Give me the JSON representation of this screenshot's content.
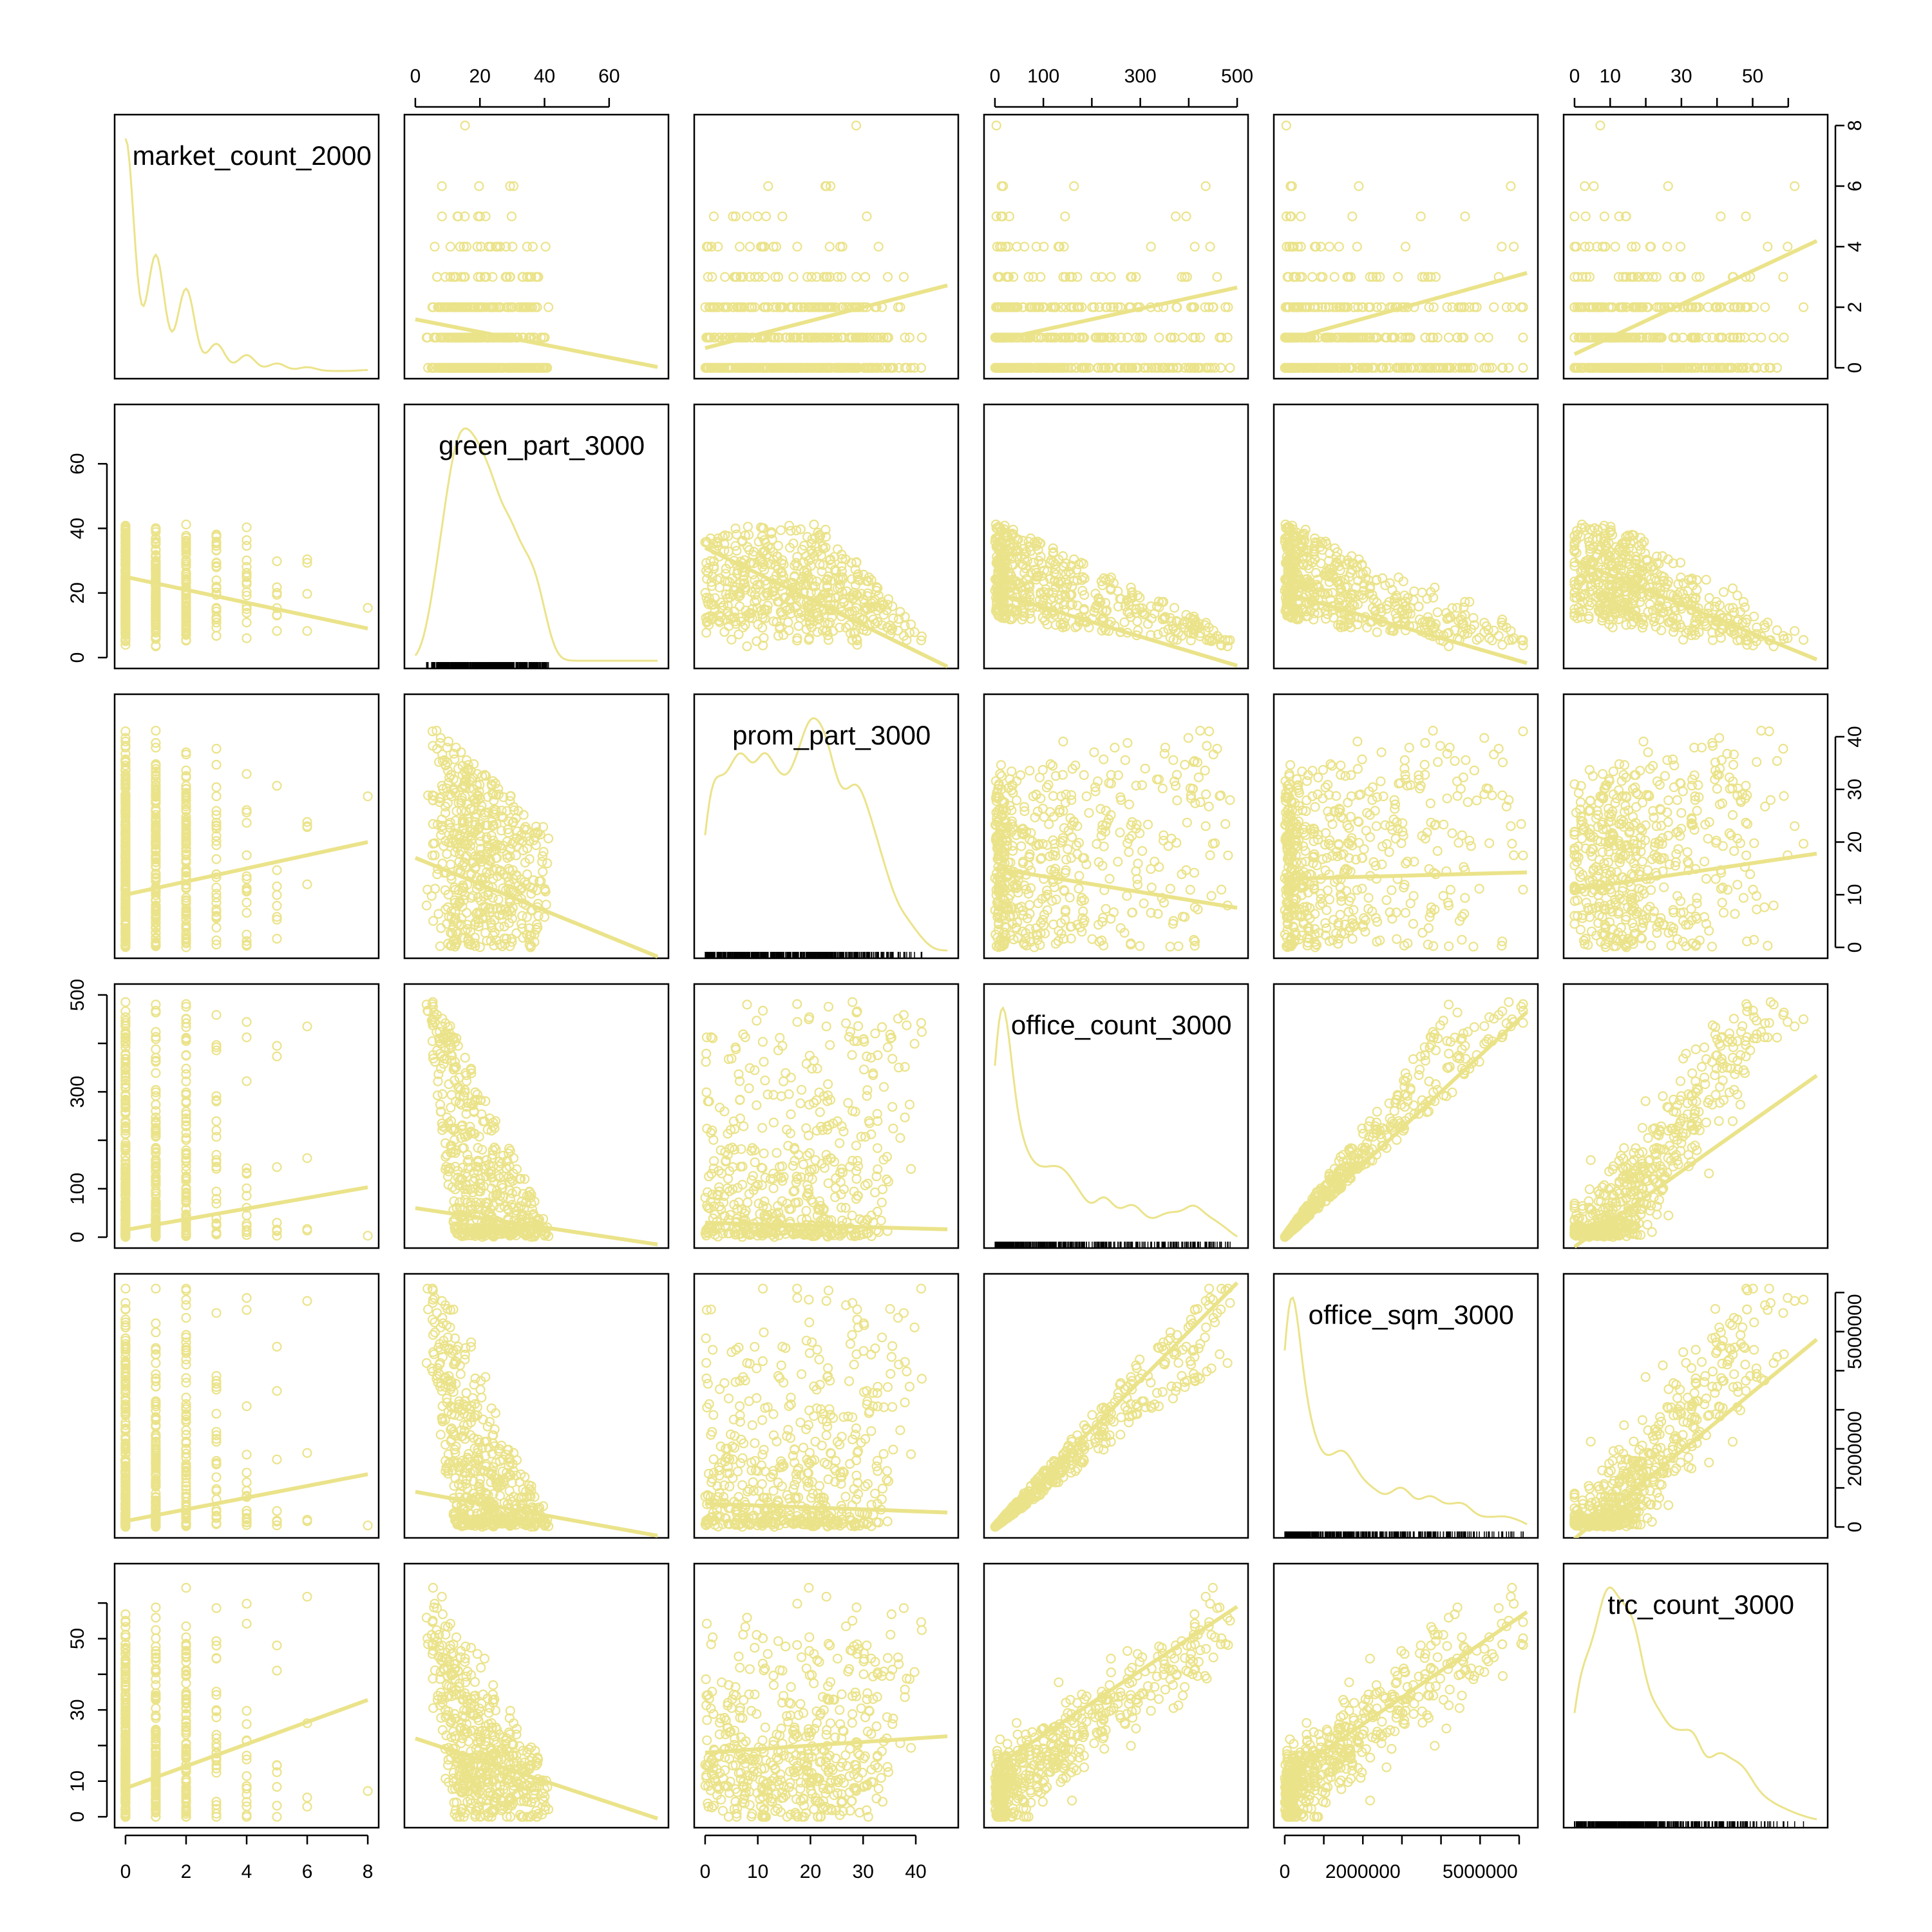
{
  "chart_data": {
    "type": "scatter",
    "subtype": "scatterplot-matrix",
    "title": "",
    "colors": {
      "points": "#ebe38a",
      "axes": "#000000",
      "rug": "#000000",
      "background": "#ffffff"
    },
    "diagonal": "kernel density with rug",
    "off_diagonal": "scatter with linear fit line",
    "grid": false,
    "legend": "none",
    "variables": [
      {
        "name": "market_count_2000",
        "range": [
          0,
          8
        ],
        "ticks": [
          0,
          2,
          4,
          6,
          8
        ],
        "tick_labels": [
          "0",
          "2",
          "4",
          "6",
          "8"
        ]
      },
      {
        "name": "green_part_3000",
        "range": [
          0,
          75
        ],
        "ticks": [
          0,
          20,
          40,
          60
        ],
        "tick_labels": [
          "0",
          "20",
          "40",
          "60"
        ]
      },
      {
        "name": "prom_part_3000",
        "range": [
          0,
          46
        ],
        "ticks": [
          0,
          10,
          20,
          30,
          40
        ],
        "tick_labels": [
          "0",
          "10",
          "20",
          "30",
          "40"
        ]
      },
      {
        "name": "office_count_3000",
        "range": [
          0,
          500
        ],
        "ticks": [
          0,
          100,
          200,
          300,
          400,
          500
        ],
        "tick_labels": [
          "0",
          "100",
          "",
          "300",
          "",
          "500"
        ]
      },
      {
        "name": "office_sqm_3000",
        "range": [
          0,
          6200000
        ],
        "ticks": [
          0,
          1000000,
          2000000,
          3000000,
          4000000,
          5000000,
          6000000
        ],
        "tick_labels": [
          "0",
          "",
          "2000000",
          "",
          "",
          "5000000",
          ""
        ]
      },
      {
        "name": "trc_count_3000",
        "range": [
          0,
          68
        ],
        "ticks": [
          0,
          10,
          20,
          30,
          40,
          50,
          60
        ],
        "tick_labels": [
          "0",
          "10",
          "",
          "30",
          "",
          "50",
          ""
        ]
      }
    ],
    "fit_lines": [
      {
        "x": "market_count_2000",
        "y": "green_part_3000",
        "intercept": 25,
        "slope": -2.0
      },
      {
        "x": "market_count_2000",
        "y": "prom_part_3000",
        "intercept": 10,
        "slope": 1.25
      },
      {
        "x": "market_count_2000",
        "y": "office_count_3000",
        "intercept": 15,
        "slope": 11
      },
      {
        "x": "market_count_2000",
        "y": "office_sqm_3000",
        "intercept": 150000,
        "slope": 150000
      },
      {
        "x": "market_count_2000",
        "y": "trc_count_3000",
        "intercept": 8,
        "slope": 3.1
      },
      {
        "x": "green_part_3000",
        "y": "market_count_2000",
        "intercept": 1.6,
        "slope": -0.021
      },
      {
        "x": "green_part_3000",
        "y": "prom_part_3000",
        "intercept": 17,
        "slope": -0.25
      },
      {
        "x": "green_part_3000",
        "y": "office_count_3000",
        "intercept": 60,
        "slope": -1.0
      },
      {
        "x": "green_part_3000",
        "y": "office_sqm_3000",
        "intercept": 900000,
        "slope": -15000
      },
      {
        "x": "green_part_3000",
        "y": "trc_count_3000",
        "intercept": 22,
        "slope": -0.3
      },
      {
        "x": "prom_part_3000",
        "y": "market_count_2000",
        "intercept": 0.65,
        "slope": 0.045
      },
      {
        "x": "prom_part_3000",
        "y": "green_part_3000",
        "intercept": 34,
        "slope": -0.8
      },
      {
        "x": "prom_part_3000",
        "y": "office_count_3000",
        "intercept": 30,
        "slope": -0.3
      },
      {
        "x": "prom_part_3000",
        "y": "office_sqm_3000",
        "intercept": 600000,
        "slope": -5000
      },
      {
        "x": "prom_part_3000",
        "y": "trc_count_3000",
        "intercept": 18,
        "slope": 0.1
      },
      {
        "x": "office_count_3000",
        "y": "market_count_2000",
        "intercept": 0.9,
        "slope": 0.0035
      },
      {
        "x": "office_count_3000",
        "y": "green_part_3000",
        "intercept": 20,
        "slope": -0.045
      },
      {
        "x": "office_count_3000",
        "y": "prom_part_3000",
        "intercept": 15,
        "slope": -0.015
      },
      {
        "x": "office_count_3000",
        "y": "office_sqm_3000",
        "intercept": 0,
        "slope": 12500
      },
      {
        "x": "office_count_3000",
        "y": "trc_count_3000",
        "intercept": 14,
        "slope": 0.09
      },
      {
        "x": "office_sqm_3000",
        "y": "market_count_2000",
        "intercept": 0.9,
        "slope": 3.6e-07
      },
      {
        "x": "office_sqm_3000",
        "y": "green_part_3000",
        "intercept": 20,
        "slope": -3.5e-06
      },
      {
        "x": "office_sqm_3000",
        "y": "prom_part_3000",
        "intercept": 13,
        "slope": 2e-07
      },
      {
        "x": "office_sqm_3000",
        "y": "office_count_3000",
        "intercept": 0,
        "slope": 7.5e-05
      },
      {
        "x": "office_sqm_3000",
        "y": "trc_count_3000",
        "intercept": 11,
        "slope": 7.5e-06
      },
      {
        "x": "trc_count_3000",
        "y": "market_count_2000",
        "intercept": 0.45,
        "slope": 0.055
      },
      {
        "x": "trc_count_3000",
        "y": "green_part_3000",
        "intercept": 30,
        "slope": -0.45
      },
      {
        "x": "trc_count_3000",
        "y": "prom_part_3000",
        "intercept": 11,
        "slope": 0.1
      },
      {
        "x": "trc_count_3000",
        "y": "office_count_3000",
        "intercept": -20,
        "slope": 5.2
      },
      {
        "x": "trc_count_3000",
        "y": "office_sqm_3000",
        "intercept": -300000,
        "slope": 75000
      }
    ]
  }
}
